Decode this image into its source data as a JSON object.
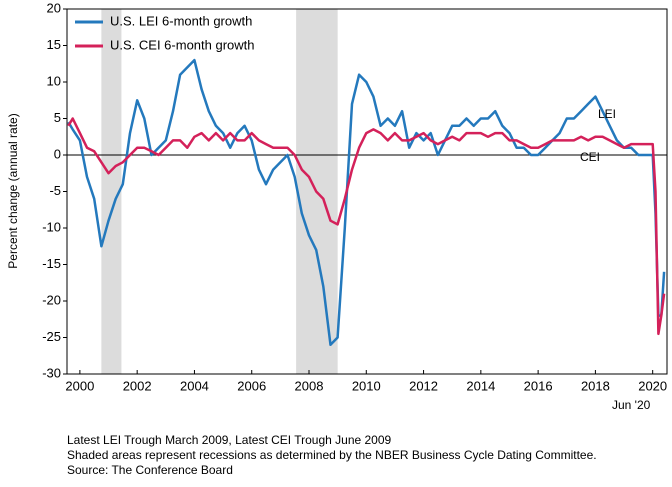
{
  "chart_data": {
    "type": "line",
    "ylabel": "Percent change (annual rate)",
    "x": [
      1999.6,
      1999.75,
      2000,
      2000.25,
      2000.5,
      2000.75,
      2001,
      2001.25,
      2001.5,
      2001.75,
      2002,
      2002.25,
      2002.5,
      2002.75,
      2003,
      2003.25,
      2003.5,
      2003.75,
      2004,
      2004.25,
      2004.5,
      2004.75,
      2005,
      2005.25,
      2005.5,
      2005.75,
      2006,
      2006.25,
      2006.5,
      2006.75,
      2007,
      2007.25,
      2007.5,
      2007.75,
      2008,
      2008.25,
      2008.5,
      2008.75,
      2009,
      2009.25,
      2009.5,
      2009.75,
      2010,
      2010.25,
      2010.5,
      2010.75,
      2011,
      2011.25,
      2011.5,
      2011.75,
      2012,
      2012.25,
      2012.5,
      2012.75,
      2013,
      2013.25,
      2013.5,
      2013.75,
      2014,
      2014.25,
      2014.5,
      2014.75,
      2015,
      2015.25,
      2015.5,
      2015.75,
      2016,
      2016.25,
      2016.5,
      2016.75,
      2017,
      2017.25,
      2017.5,
      2017.75,
      2018,
      2018.25,
      2018.5,
      2018.75,
      2019,
      2019.25,
      2019.5,
      2019.75,
      2020,
      2020.1,
      2020.2,
      2020.3,
      2020.4
    ],
    "series": [
      {
        "name": "U.S. LEI 6-month growth",
        "color": "#2479bd",
        "values": [
          4.5,
          3.5,
          2,
          -3,
          -6,
          -12.5,
          -9,
          -6,
          -4,
          3,
          7.5,
          5,
          0,
          1,
          2,
          6,
          11,
          12,
          13,
          9,
          6,
          4,
          3,
          1,
          3,
          4,
          2,
          -2,
          -4,
          -2,
          -1,
          0,
          -3,
          -8,
          -11,
          -13,
          -18,
          -26,
          -25,
          -10,
          7,
          11,
          10,
          8,
          4,
          5,
          4,
          6,
          1,
          3,
          2,
          3,
          0,
          2,
          4,
          4,
          5,
          4,
          5,
          5,
          6,
          4,
          3,
          1,
          1,
          0,
          0,
          1,
          2,
          3,
          5,
          5,
          6,
          7,
          8,
          6,
          4,
          2,
          1,
          1,
          0,
          0,
          0,
          -8,
          -22,
          -22,
          -16
        ]
      },
      {
        "name": "U.S. CEI 6-month growth",
        "color": "#d4215a",
        "values": [
          4,
          5,
          3,
          1,
          0.5,
          -1,
          -2.5,
          -1.5,
          -1,
          0,
          1,
          1,
          0.5,
          0,
          1,
          2,
          2,
          1,
          2.5,
          3,
          2,
          3,
          2,
          3,
          2,
          2,
          3,
          2,
          1.5,
          1,
          1,
          1,
          0,
          -2,
          -3,
          -5,
          -6,
          -9,
          -9.5,
          -6,
          -2,
          1,
          3,
          3.5,
          3,
          2,
          3,
          2,
          2,
          2.5,
          3,
          2,
          1.5,
          2,
          2.5,
          2,
          3,
          3,
          3,
          2.5,
          3,
          3,
          2,
          2,
          1.5,
          1,
          1,
          1.5,
          2,
          2,
          2,
          2,
          2.5,
          2,
          2.5,
          2.5,
          2,
          1.5,
          1,
          1.5,
          1.5,
          1.5,
          1.5,
          -5,
          -24.5,
          -22,
          -19
        ]
      }
    ],
    "recessions": [
      [
        2000.75,
        2001.45
      ],
      [
        2007.55,
        2009.0
      ]
    ],
    "xlim": [
      1999.55,
      2020.5
    ],
    "xticks": [
      2000,
      2002,
      2004,
      2006,
      2008,
      2010,
      2012,
      2014,
      2016,
      2018,
      2020
    ],
    "ylim": [
      -30,
      20
    ],
    "yticks": [
      -30,
      -25,
      -20,
      -15,
      -10,
      -5,
      0,
      5,
      10,
      15,
      20
    ],
    "legend": "upper left",
    "annotations": [
      "LEI",
      "CEI",
      "Jun '20"
    ],
    "notes": [
      "Latest LEI Trough March 2009, Latest CEI Trough June 2009",
      "Shaded areas represent recessions as determined by the NBER Business Cycle Dating Committee.",
      "Source: The Conference Board"
    ]
  }
}
